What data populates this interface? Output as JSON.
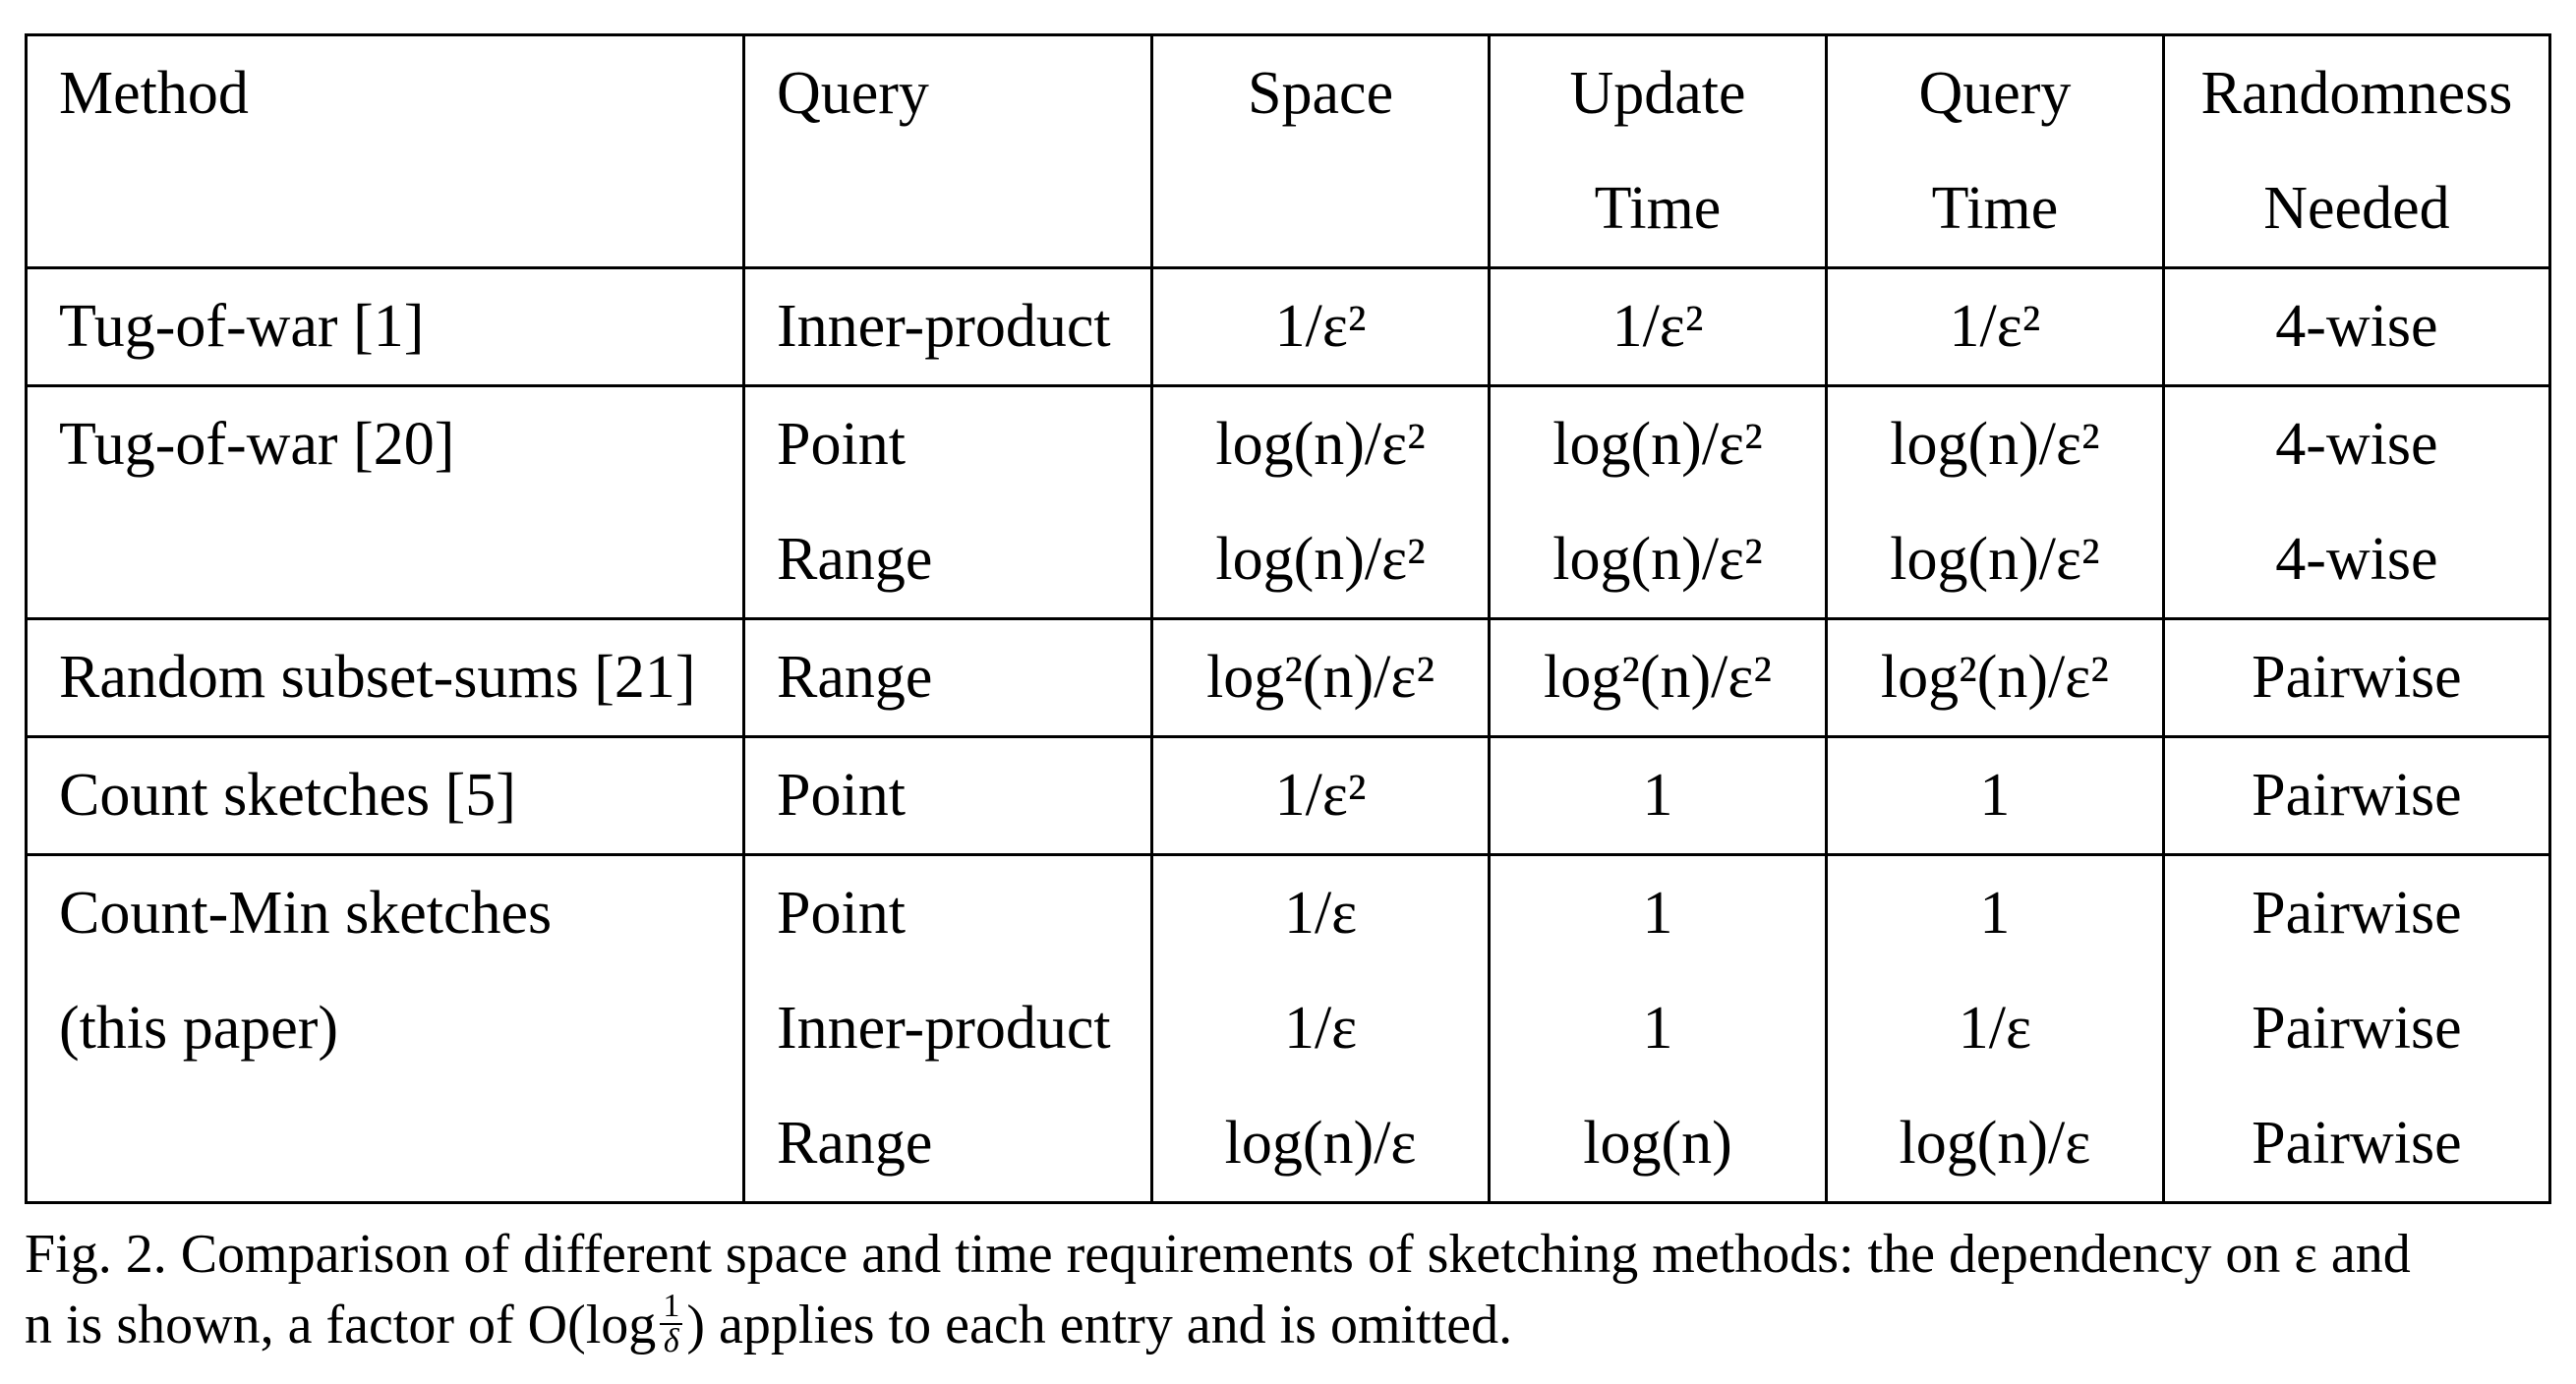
{
  "table": {
    "headers": {
      "method": [
        "Method"
      ],
      "query": [
        "Query"
      ],
      "space": [
        "Space"
      ],
      "update_time": [
        "Update",
        "Time"
      ],
      "query_time": [
        "Query",
        "Time"
      ],
      "randomness": [
        "Randomness",
        "Needed"
      ]
    },
    "rows": [
      {
        "method": [
          "Tug-of-war [1]"
        ],
        "query": [
          "Inner-product"
        ],
        "space": [
          "1/ε²"
        ],
        "update_time": [
          "1/ε²"
        ],
        "query_time": [
          "1/ε²"
        ],
        "randomness": [
          "4-wise"
        ]
      },
      {
        "method": [
          "Tug-of-war [20]"
        ],
        "query": [
          "Point",
          "Range"
        ],
        "space": [
          "log(n)/ε²",
          "log(n)/ε²"
        ],
        "update_time": [
          "log(n)/ε²",
          "log(n)/ε²"
        ],
        "query_time": [
          "log(n)/ε²",
          "log(n)/ε²"
        ],
        "randomness": [
          "4-wise",
          "4-wise"
        ]
      },
      {
        "method": [
          "Random subset-sums [21]"
        ],
        "query": [
          "Range"
        ],
        "space": [
          "log²(n)/ε²"
        ],
        "update_time": [
          "log²(n)/ε²"
        ],
        "query_time": [
          "log²(n)/ε²"
        ],
        "randomness": [
          "Pairwise"
        ]
      },
      {
        "method": [
          "Count sketches [5]"
        ],
        "query": [
          "Point"
        ],
        "space": [
          "1/ε²"
        ],
        "update_time": [
          "1"
        ],
        "query_time": [
          "1"
        ],
        "randomness": [
          "Pairwise"
        ]
      },
      {
        "method": [
          "Count-Min sketches",
          "(this paper)"
        ],
        "query": [
          "Point",
          "Inner-product",
          "Range"
        ],
        "space": [
          "1/ε",
          "1/ε",
          "log(n)/ε"
        ],
        "update_time": [
          "1",
          "1",
          "log(n)"
        ],
        "query_time": [
          "1",
          "1/ε",
          "log(n)/ε"
        ],
        "randomness": [
          "Pairwise",
          "Pairwise",
          "Pairwise"
        ]
      }
    ]
  },
  "caption": {
    "line1": "Fig. 2. Comparison of different space and time requirements of sketching methods: the dependency on ε and",
    "line2_prefix": "n is shown, a factor of O(log",
    "frac_num": "1",
    "frac_den": "δ",
    "line2_suffix": ") applies to each entry and is omitted."
  }
}
